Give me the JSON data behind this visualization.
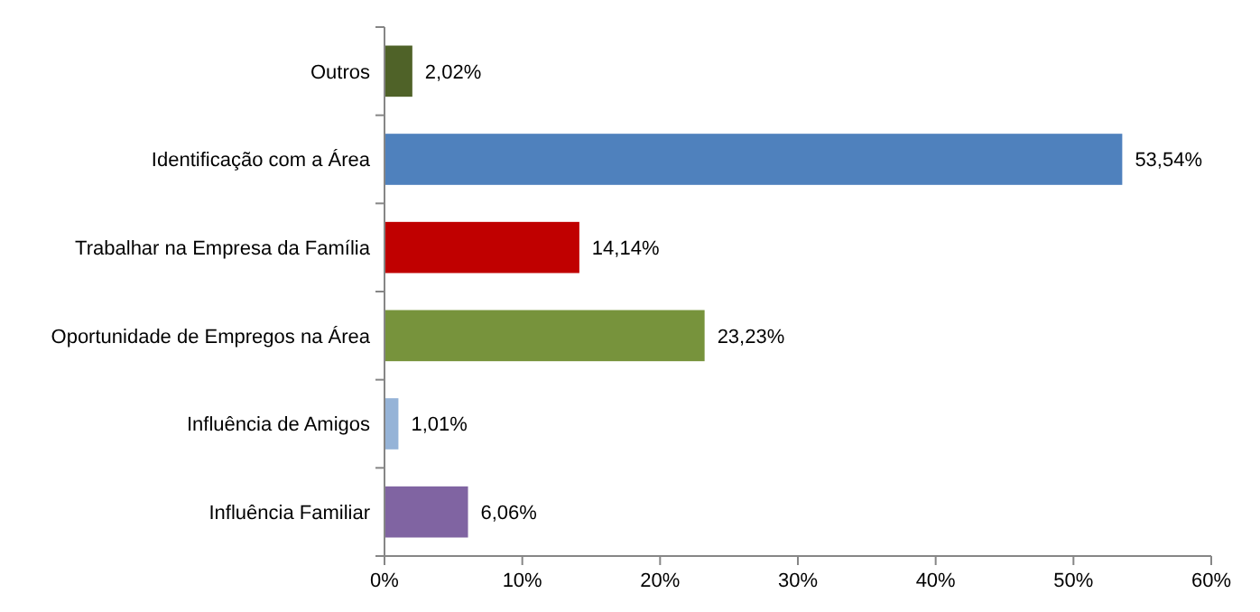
{
  "chart_data": {
    "type": "bar",
    "orientation": "horizontal",
    "categories": [
      "Outros",
      "Identificação com a Área",
      "Trabalhar na Empresa da Família",
      "Oportunidade de Empregos na Área",
      "Influência de Amigos",
      "Influência Familiar"
    ],
    "values": [
      2.02,
      53.54,
      14.14,
      23.23,
      1.01,
      6.06
    ],
    "colors": [
      "#4f6228",
      "#4f81bd",
      "#c00000",
      "#77933c",
      "#95b3d7",
      "#8064a2"
    ],
    "value_labels": [
      "2,02%",
      "53,54%",
      "14,14%",
      "23,23%",
      "1,01%",
      "6,06%"
    ],
    "xlim": [
      0,
      60
    ],
    "xticks": [
      {
        "value": 0,
        "label": "0%"
      },
      {
        "value": 10,
        "label": "10%"
      },
      {
        "value": 20,
        "label": "20%"
      },
      {
        "value": 30,
        "label": "30%"
      },
      {
        "value": 40,
        "label": "40%"
      },
      {
        "value": 50,
        "label": "50%"
      },
      {
        "value": 60,
        "label": "60%"
      }
    ],
    "grid": false
  }
}
